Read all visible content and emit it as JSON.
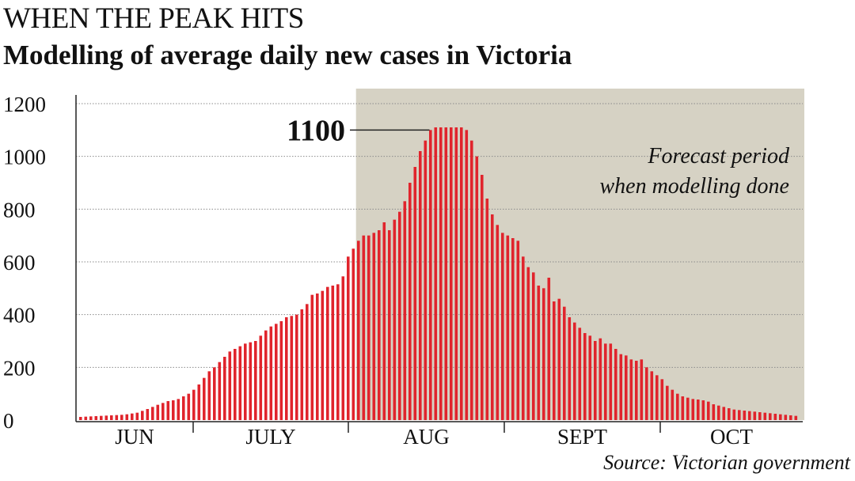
{
  "header": {
    "title": "WHEN THE PEAK HITS",
    "subtitle": "Modelling of average daily new cases in Victoria"
  },
  "source": "Source: Victorian government",
  "chart_data": {
    "type": "bar",
    "ylim": [
      0,
      1200
    ],
    "yticks": [
      0,
      200,
      400,
      600,
      800,
      1000,
      1200
    ],
    "grid": true,
    "bar_color": "#e0242c",
    "months": [
      "JUN",
      "JULY",
      "AUG",
      "SEPT",
      "OCT"
    ],
    "forecast_label": [
      "Forecast period",
      "when modelling done"
    ],
    "forecast_start_index": 54,
    "forecast_color": "#d6d2c4",
    "peak_label": "1100",
    "peak_value": 1100,
    "values": [
      12,
      13,
      14,
      15,
      16,
      17,
      18,
      19,
      20,
      22,
      25,
      28,
      35,
      42,
      50,
      58,
      65,
      72,
      75,
      80,
      90,
      100,
      115,
      135,
      160,
      185,
      200,
      220,
      240,
      260,
      270,
      280,
      290,
      295,
      300,
      320,
      340,
      355,
      365,
      375,
      390,
      395,
      400,
      420,
      440,
      475,
      480,
      490,
      505,
      510,
      515,
      545,
      620,
      650,
      680,
      700,
      700,
      710,
      720,
      750,
      720,
      760,
      790,
      830,
      900,
      960,
      1020,
      1060,
      1100,
      1110,
      1110,
      1110,
      1110,
      1110,
      1110,
      1100,
      1060,
      1000,
      930,
      840,
      780,
      740,
      710,
      700,
      690,
      680,
      620,
      580,
      560,
      510,
      500,
      540,
      450,
      460,
      430,
      390,
      370,
      350,
      330,
      320,
      300,
      310,
      290,
      290,
      270,
      250,
      245,
      230,
      225,
      230,
      200,
      185,
      170,
      155,
      130,
      115,
      100,
      90,
      85,
      80,
      78,
      75,
      70,
      60,
      55,
      50,
      45,
      40,
      38,
      36,
      34,
      32,
      30,
      28,
      26,
      24,
      22,
      20,
      18,
      16
    ]
  }
}
